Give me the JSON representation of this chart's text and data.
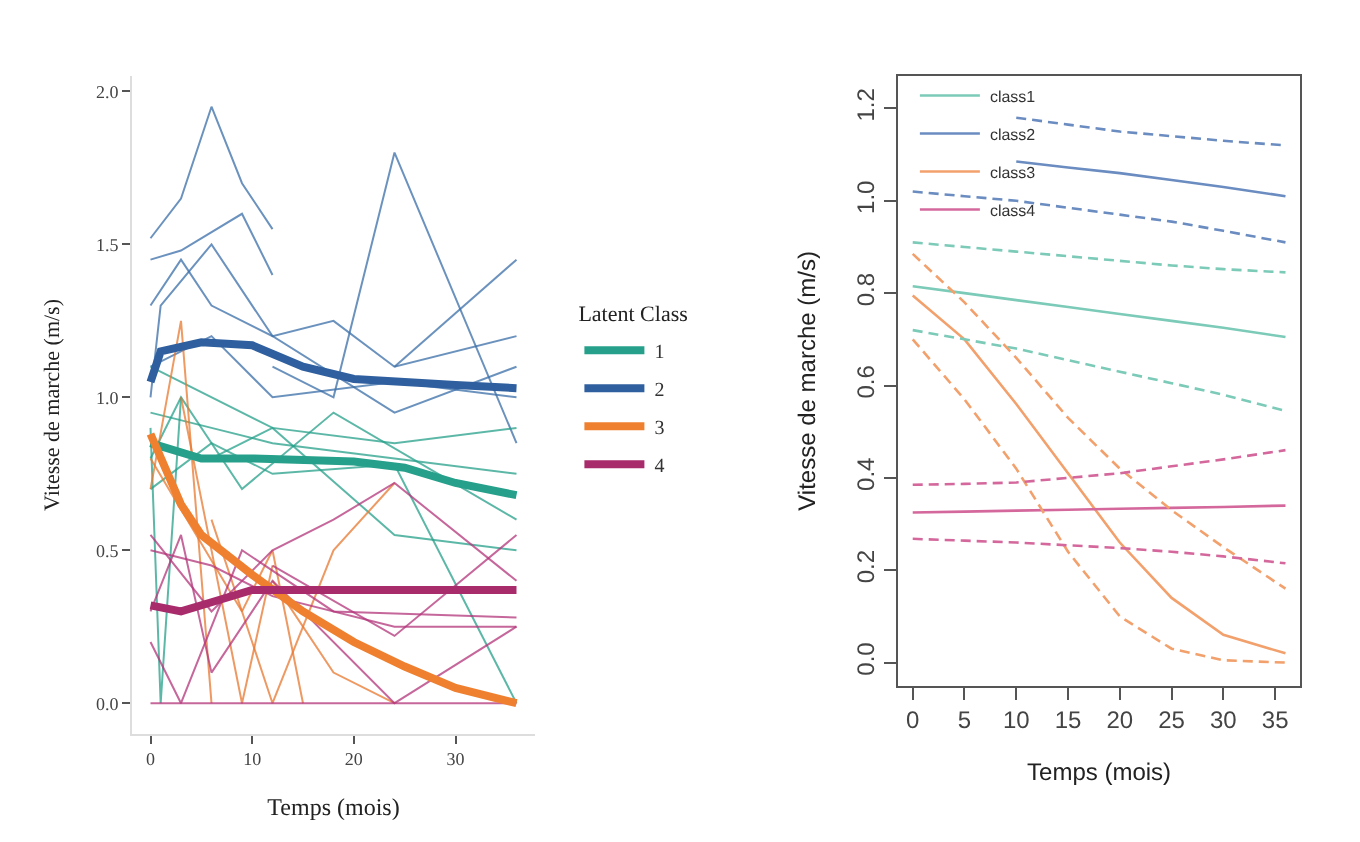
{
  "chart_data": [
    {
      "type": "line",
      "xlabel": "Temps (mois)",
      "ylabel": "Vitesse de marche (m/s)",
      "legend_title": "Latent Class",
      "legend": "right",
      "marker": "none",
      "xlim": [
        -1.8,
        37.8
      ],
      "ylim": [
        -0.1,
        2.05
      ],
      "xticks": [
        0,
        10,
        20,
        30
      ],
      "yticks": [
        {
          "value": 0,
          "label": "0.0"
        },
        {
          "value": 0.5,
          "label": "0.5"
        },
        {
          "value": 1,
          "label": "1.0"
        },
        {
          "value": 1.5,
          "label": "1.5"
        },
        {
          "value": 2,
          "label": "2.0"
        }
      ],
      "series": [
        {
          "color": "#3a6ea8",
          "x": [
            0,
            3,
            6,
            9,
            12
          ],
          "values": [
            1.52,
            1.65,
            1.95,
            1.7,
            1.55
          ]
        },
        {
          "color": "#3a6ea8",
          "x": [
            12,
            18,
            24,
            36
          ],
          "values": [
            1.1,
            1.0,
            1.8,
            0.85
          ]
        },
        {
          "color": "#3a6ea8",
          "x": [
            0,
            3,
            9,
            12
          ],
          "values": [
            1.45,
            1.48,
            1.6,
            1.4
          ]
        },
        {
          "color": "#3a6ea8",
          "x": [
            0,
            3,
            6,
            12,
            18,
            24,
            36
          ],
          "values": [
            1.3,
            1.45,
            1.3,
            1.2,
            1.25,
            1.1,
            1.2
          ]
        },
        {
          "color": "#3a6ea8",
          "x": [
            24,
            36
          ],
          "values": [
            1.1,
            1.45
          ]
        },
        {
          "color": "#3a6ea8",
          "x": [
            0,
            6,
            12,
            24,
            36
          ],
          "values": [
            1.1,
            1.2,
            1.0,
            1.05,
            1.0
          ]
        },
        {
          "color": "#3a6ea8",
          "x": [
            0,
            1,
            6,
            12,
            24,
            36
          ],
          "values": [
            1.0,
            1.3,
            1.5,
            1.2,
            0.95,
            1.1
          ]
        },
        {
          "color": "#26a08a",
          "x": [
            0,
            1,
            3
          ],
          "values": [
            0.9,
            0.0,
            1.0
          ]
        },
        {
          "color": "#26a08a",
          "x": [
            0,
            6,
            12,
            24,
            36
          ],
          "values": [
            0.95,
            0.9,
            0.85,
            0.8,
            0.75
          ]
        },
        {
          "color": "#26a08a",
          "x": [
            0,
            3,
            9,
            18,
            36
          ],
          "values": [
            0.8,
            1.0,
            0.7,
            0.95,
            0.6
          ]
        },
        {
          "color": "#26a08a",
          "x": [
            0,
            6,
            12,
            24,
            36
          ],
          "values": [
            0.7,
            0.85,
            0.75,
            0.78,
            0.0
          ]
        },
        {
          "color": "#26a08a",
          "x": [
            6,
            12,
            24,
            36
          ],
          "values": [
            0.8,
            0.9,
            0.55,
            0.5
          ]
        },
        {
          "color": "#26a08a",
          "x": [
            0,
            12,
            24,
            36
          ],
          "values": [
            1.1,
            0.9,
            0.85,
            0.9
          ]
        },
        {
          "color": "#e8782f",
          "x": [
            0,
            3,
            6
          ],
          "values": [
            0.7,
            1.25,
            0.0
          ]
        },
        {
          "color": "#e8782f",
          "x": [
            3,
            6,
            9,
            12
          ],
          "values": [
            1.0,
            0.5,
            0.0,
            0.45
          ]
        },
        {
          "color": "#e8782f",
          "x": [
            6,
            12,
            18,
            24
          ],
          "values": [
            0.6,
            0.0,
            0.5,
            0.72
          ]
        },
        {
          "color": "#e8782f",
          "x": [
            0,
            9,
            12,
            15
          ],
          "values": [
            0.8,
            0.3,
            0.5,
            0.0
          ]
        },
        {
          "color": "#e8782f",
          "x": [
            12,
            18,
            24
          ],
          "values": [
            0.4,
            0.1,
            0.0
          ]
        },
        {
          "color": "#b3357a",
          "x": [
            0,
            6,
            12,
            24,
            36
          ],
          "values": [
            0.5,
            0.45,
            0.35,
            0.25,
            0.25
          ]
        },
        {
          "color": "#b3357a",
          "x": [
            0,
            3,
            9,
            18,
            36
          ],
          "values": [
            0.2,
            0.0,
            0.5,
            0.3,
            0.28
          ]
        },
        {
          "color": "#b3357a",
          "x": [
            0,
            6,
            12,
            18,
            24,
            36
          ],
          "values": [
            0.55,
            0.3,
            0.5,
            0.6,
            0.72,
            0.4
          ]
        },
        {
          "color": "#b3357a",
          "x": [
            0,
            3,
            6,
            12,
            24,
            36
          ],
          "values": [
            0.3,
            0.55,
            0.1,
            0.4,
            0.0,
            0.25
          ]
        },
        {
          "color": "#b3357a",
          "x": [
            0,
            36
          ],
          "values": [
            0.0,
            0.0
          ]
        },
        {
          "color": "#b3357a",
          "x": [
            12,
            24,
            36
          ],
          "values": [
            0.45,
            0.22,
            0.55
          ]
        },
        {
          "name": "1",
          "color": "#26a08a",
          "x": [
            0,
            5,
            10,
            20,
            25,
            30,
            36
          ],
          "values": [
            0.85,
            0.8,
            0.8,
            0.79,
            0.77,
            0.72,
            0.68
          ]
        },
        {
          "name": "2",
          "color": "#2f5f9e",
          "x": [
            0,
            1,
            5,
            10,
            15,
            20,
            30,
            36
          ],
          "values": [
            1.05,
            1.15,
            1.18,
            1.17,
            1.1,
            1.06,
            1.04,
            1.03
          ]
        },
        {
          "name": "3",
          "color": "#ee8030",
          "x": [
            0,
            3,
            5,
            10,
            15,
            20,
            25,
            30,
            36
          ],
          "values": [
            0.88,
            0.65,
            0.55,
            0.42,
            0.3,
            0.2,
            0.12,
            0.05,
            0.0
          ]
        },
        {
          "name": "4",
          "color": "#a82c6c",
          "x": [
            0,
            3,
            6,
            10,
            20,
            36
          ],
          "values": [
            0.32,
            0.3,
            0.33,
            0.37,
            0.37,
            0.37
          ]
        }
      ]
    },
    {
      "type": "line",
      "xlabel": "Temps (mois)",
      "ylabel": "Vitesse de marche (m/s)",
      "legend": "top left",
      "marker": "none",
      "xlim": [
        -1.44,
        37.44
      ],
      "ylim": [
        -0.05,
        1.27
      ],
      "xticks": [
        0,
        5,
        10,
        15,
        20,
        25,
        30,
        35
      ],
      "yticks": [
        {
          "value": 0,
          "label": "0.0"
        },
        {
          "value": 0.2,
          "label": "0.2"
        },
        {
          "value": 0.4,
          "label": "0.4"
        },
        {
          "value": 0.6,
          "label": "0.6"
        },
        {
          "value": 0.8,
          "label": "0.8"
        },
        {
          "value": 1,
          "label": "1.0"
        },
        {
          "value": 1.2,
          "label": "1.2"
        }
      ],
      "x": [
        0,
        5,
        10,
        15,
        20,
        25,
        30,
        36
      ],
      "series": [
        {
          "name": "class1",
          "color": "#7ccab8",
          "line_style": "solid",
          "values": [
            0.815,
            0.8,
            0.785,
            0.77,
            0.755,
            0.74,
            0.725,
            0.705
          ]
        },
        {
          "name": "class2",
          "color": "#6a8cc0",
          "line_style": "solid",
          "values": [
            null,
            null,
            1.085,
            1.072,
            1.06,
            1.045,
            1.03,
            1.01
          ]
        },
        {
          "name": "class3",
          "color": "#f2a06c",
          "line_style": "solid",
          "values": [
            0.795,
            0.7,
            0.56,
            0.41,
            0.26,
            0.14,
            0.06,
            0.02
          ]
        },
        {
          "name": "class4",
          "color": "#d4689c",
          "line_style": "solid",
          "values": [
            0.325,
            0.327,
            0.329,
            0.331,
            0.333,
            0.335,
            0.337,
            0.34
          ]
        },
        {
          "color": "#7ccab8",
          "line_style": "dashed",
          "values": [
            0.91,
            0.9,
            0.89,
            0.88,
            0.87,
            0.86,
            0.852,
            0.845
          ]
        },
        {
          "color": "#7ccab8",
          "line_style": "dashed",
          "values": [
            0.72,
            0.7,
            0.68,
            0.655,
            0.63,
            0.605,
            0.58,
            0.545
          ]
        },
        {
          "color": "#6a8cc0",
          "line_style": "dashed",
          "values": [
            null,
            null,
            1.18,
            1.165,
            1.15,
            1.14,
            1.13,
            1.12
          ]
        },
        {
          "color": "#6a8cc0",
          "line_style": "dashed",
          "values": [
            1.02,
            1.01,
            1.0,
            0.985,
            0.97,
            0.955,
            0.935,
            0.91
          ]
        },
        {
          "color": "#f2a06c",
          "line_style": "dashed",
          "values": [
            0.885,
            0.78,
            0.66,
            0.53,
            0.42,
            0.33,
            0.25,
            0.16
          ]
        },
        {
          "color": "#f2a06c",
          "line_style": "dashed",
          "values": [
            0.7,
            0.57,
            0.42,
            0.24,
            0.1,
            0.03,
            0.005,
            0.0
          ]
        },
        {
          "color": "#d4689c",
          "line_style": "dashed",
          "values": [
            0.385,
            0.387,
            0.39,
            0.4,
            0.41,
            0.425,
            0.44,
            0.46
          ]
        },
        {
          "color": "#d4689c",
          "line_style": "dashed",
          "values": [
            0.268,
            0.264,
            0.26,
            0.254,
            0.248,
            0.24,
            0.23,
            0.215
          ]
        }
      ]
    }
  ]
}
